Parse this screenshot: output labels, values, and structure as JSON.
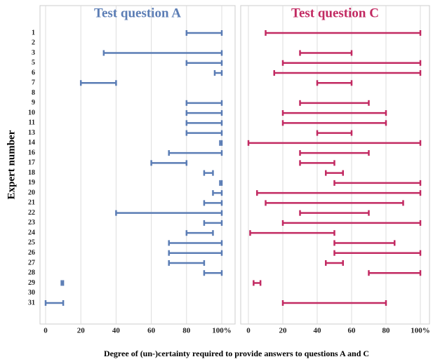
{
  "chart_data": {
    "type": "range-bar",
    "ylabel": "Expert number",
    "xlabel": "Degree of (un-)certainty required to provide answers to questions A and C",
    "categories": [
      "1",
      "2",
      "3",
      "5",
      "6",
      "7",
      "8",
      "9",
      "10",
      "11",
      "13",
      "14",
      "16",
      "17",
      "18",
      "19",
      "20",
      "21",
      "22",
      "23",
      "24",
      "25",
      "26",
      "27",
      "28",
      "29",
      "30",
      "31"
    ],
    "xlim": [
      0,
      100
    ],
    "xticks": [
      0,
      20,
      40,
      60,
      80,
      {
        "value": 100,
        "label": "100%"
      }
    ],
    "grid": true,
    "panels": [
      {
        "title": "Test question A",
        "color": "#5b7db5",
        "low": [
          80,
          null,
          33,
          80,
          96,
          20,
          null,
          80,
          80,
          80,
          80,
          99,
          70,
          60,
          90,
          99,
          95,
          90,
          40,
          90,
          80,
          70,
          70,
          70,
          90,
          9,
          null,
          0
        ],
        "high": [
          100,
          null,
          100,
          100,
          100,
          40,
          null,
          100,
          100,
          100,
          100,
          100,
          100,
          80,
          95,
          100,
          100,
          100,
          100,
          100,
          95,
          100,
          100,
          90,
          100,
          10,
          null,
          10
        ]
      },
      {
        "title": "Test question C",
        "color": "#c22a62",
        "low": [
          10,
          null,
          30,
          20,
          15,
          40,
          null,
          30,
          20,
          20,
          40,
          0,
          30,
          30,
          45,
          50,
          5,
          10,
          30,
          20,
          1,
          50,
          50,
          45,
          70,
          3,
          null,
          20
        ],
        "high": [
          100,
          null,
          60,
          100,
          100,
          60,
          null,
          70,
          80,
          80,
          60,
          100,
          70,
          50,
          55,
          100,
          100,
          90,
          70,
          100,
          50,
          85,
          100,
          55,
          100,
          7,
          null,
          80
        ]
      }
    ]
  }
}
